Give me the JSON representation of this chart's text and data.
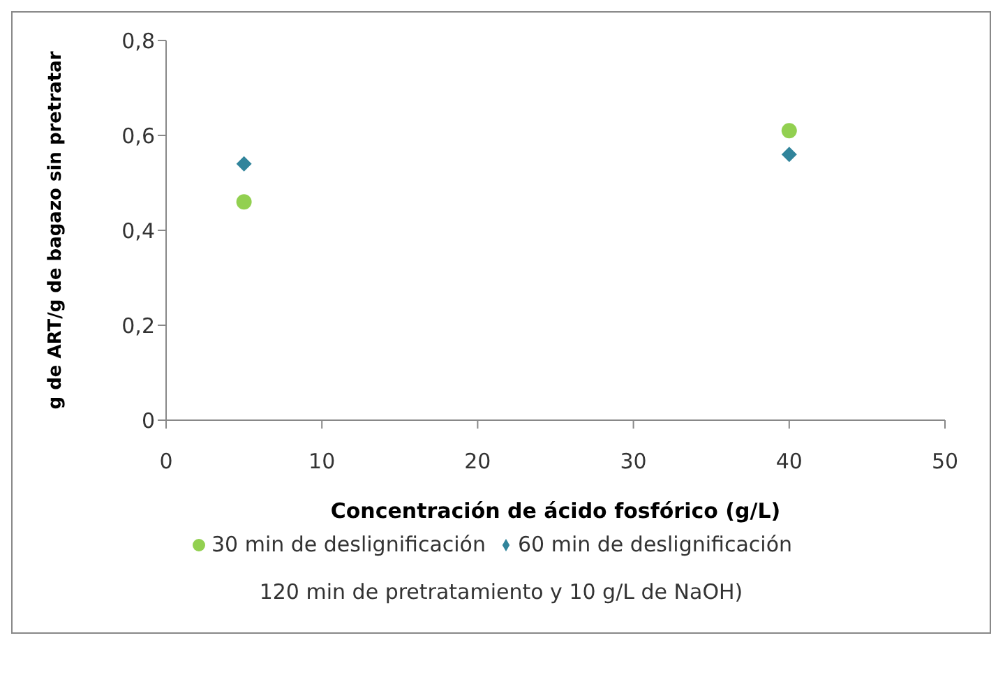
{
  "chart_data": {
    "type": "scatter",
    "xlabel": "Concentración de ácido fosfórico (g/L)",
    "ylabel": "g de ART/g de bagazo sin pretratar",
    "xlim": [
      0,
      50
    ],
    "xticks": [
      0,
      10,
      20,
      30,
      40,
      50
    ],
    "ylim": [
      0,
      0.8
    ],
    "yticks": [
      0,
      {
        "value": 0.2,
        "label": "0,2"
      },
      {
        "value": 0.4,
        "label": "0,4"
      },
      {
        "value": 0.6,
        "label": "0,6"
      },
      {
        "value": 0.8,
        "label": "0,8"
      }
    ],
    "grid": false,
    "legend": "bottom",
    "x": [
      5,
      40
    ],
    "series": [
      {
        "name": "30 min de deslignificación",
        "color": "#92d050",
        "marker": "circle",
        "values": [
          0.46,
          0.61
        ]
      },
      {
        "name": "60 min de deslignificación",
        "color": "#31849b",
        "marker": "diamond",
        "values": [
          0.54,
          0.56
        ]
      }
    ],
    "annotations": [
      "120 min de pretratamiento y 10 g/L de NaOH)"
    ]
  }
}
